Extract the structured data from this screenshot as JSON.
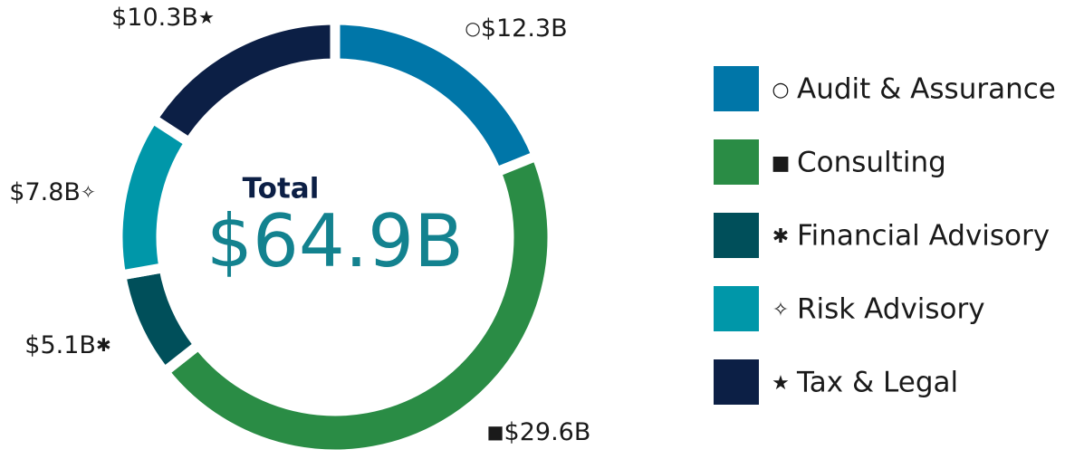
{
  "chart_data": {
    "type": "donut",
    "categories": [
      "Audit & Assurance",
      "Consulting",
      "Financial Advisory",
      "Risk Advisory",
      "Tax & Legal"
    ],
    "values": [
      12.3,
      29.6,
      5.1,
      7.8,
      10.3
    ],
    "value_labels": [
      "$12.3B",
      "$29.6B",
      "$5.1B",
      "$7.8B",
      "$10.3B"
    ],
    "symbols": [
      "○",
      "■",
      "✱",
      "✧",
      "★"
    ],
    "colors": [
      "#0076a8",
      "#2a8c45",
      "#004f5a",
      "#0097a9",
      "#0c1f45"
    ],
    "center_title": "Total",
    "center_value": "$64.9B",
    "legend": "right"
  }
}
